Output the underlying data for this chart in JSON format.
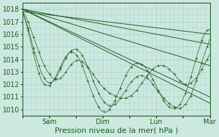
{
  "bg_color": "#cce8e0",
  "grid_color": "#aad0c8",
  "line_color": "#1a5c1a",
  "xlabel": "Pression niveau de la mer( hPa )",
  "xlabel_fontsize": 8,
  "ylim": [
    1009.5,
    1018.5
  ],
  "yticks": [
    1010,
    1011,
    1012,
    1013,
    1014,
    1015,
    1016,
    1017,
    1018
  ],
  "xtick_labels": [
    "",
    "Sam",
    "",
    "Dim",
    "",
    "Lun",
    "",
    "Mar"
  ],
  "xtick_positions": [
    0,
    24,
    48,
    72,
    96,
    120,
    144,
    168
  ],
  "xlim": [
    0,
    168
  ],
  "tick_fontsize": 7,
  "figsize": [
    3.2,
    2.0
  ],
  "dpi": 100,
  "straight_series": [
    [
      [
        0,
        168
      ],
      [
        1017.8,
        1016.0
      ]
    ],
    [
      [
        0,
        168
      ],
      [
        1018.0,
        1015.2
      ]
    ],
    [
      [
        0,
        168
      ],
      [
        1018.0,
        1013.5
      ]
    ],
    [
      [
        0,
        168
      ],
      [
        1018.0,
        1011.0
      ]
    ],
    [
      [
        0,
        168
      ],
      [
        1018.0,
        1010.5
      ]
    ]
  ],
  "wavy_series": [
    [
      1017.8,
      1017.5,
      1017.0,
      1016.4,
      1015.8,
      1015.2,
      1014.6,
      1014.0,
      1013.5,
      1013.1,
      1012.8,
      1012.5,
      1012.4,
      1012.4,
      1012.5,
      1012.7,
      1013.0,
      1013.3,
      1013.6,
      1013.8,
      1013.9,
      1013.9,
      1013.8,
      1013.6,
      1013.4,
      1013.1,
      1012.8,
      1012.5,
      1012.2,
      1011.9,
      1011.7,
      1011.5,
      1011.3,
      1011.2,
      1011.1,
      1011.0,
      1010.9,
      1010.9,
      1010.9,
      1011.0,
      1011.1,
      1011.3,
      1011.5,
      1011.8,
      1012.1,
      1012.4,
      1012.7,
      1013.0,
      1013.2,
      1013.4,
      1013.5,
      1013.5,
      1013.5,
      1013.4,
      1013.2,
      1013.0,
      1012.8,
      1012.5,
      1012.3,
      1012.1,
      1012.0,
      1012.0,
      1012.1,
      1012.3,
      1012.5,
      1012.8,
      1013.2,
      1013.6,
      1014.0,
      1014.4
    ],
    [
      1017.8,
      1017.2,
      1016.5,
      1015.7,
      1014.9,
      1014.2,
      1013.5,
      1012.9,
      1012.5,
      1012.2,
      1012.1,
      1012.2,
      1012.4,
      1012.8,
      1013.2,
      1013.7,
      1014.1,
      1014.5,
      1014.7,
      1014.8,
      1014.8,
      1014.6,
      1014.3,
      1013.9,
      1013.4,
      1012.9,
      1012.3,
      1011.8,
      1011.3,
      1010.9,
      1010.6,
      1010.4,
      1010.3,
      1010.3,
      1010.4,
      1010.6,
      1010.9,
      1011.2,
      1011.5,
      1011.9,
      1012.2,
      1012.4,
      1012.6,
      1012.7,
      1012.7,
      1012.6,
      1012.5,
      1012.3,
      1012.0,
      1011.7,
      1011.4,
      1011.2,
      1010.9,
      1010.7,
      1010.5,
      1010.3,
      1010.2,
      1010.1,
      1010.1,
      1010.2,
      1010.4,
      1010.7,
      1011.1,
      1011.7,
      1012.3,
      1013.0,
      1013.7,
      1014.4,
      1015.0,
      1015.6
    ],
    [
      1017.8,
      1017.1,
      1016.3,
      1015.4,
      1014.5,
      1013.6,
      1012.9,
      1012.3,
      1012.0,
      1011.9,
      1011.9,
      1012.2,
      1012.5,
      1013.0,
      1013.4,
      1013.9,
      1014.2,
      1014.5,
      1014.6,
      1014.5,
      1014.3,
      1014.0,
      1013.5,
      1012.9,
      1012.3,
      1011.7,
      1011.1,
      1010.6,
      1010.2,
      1009.9,
      1009.8,
      1009.8,
      1010.0,
      1010.3,
      1010.7,
      1011.2,
      1011.7,
      1012.2,
      1012.7,
      1013.1,
      1013.4,
      1013.6,
      1013.7,
      1013.7,
      1013.6,
      1013.4,
      1013.1,
      1012.8,
      1012.4,
      1012.0,
      1011.5,
      1011.1,
      1010.7,
      1010.4,
      1010.2,
      1010.1,
      1010.1,
      1010.2,
      1010.4,
      1010.8,
      1011.3,
      1011.9,
      1012.6,
      1013.3,
      1014.1,
      1014.8,
      1015.5,
      1016.0,
      1016.3,
      1016.4
    ]
  ]
}
